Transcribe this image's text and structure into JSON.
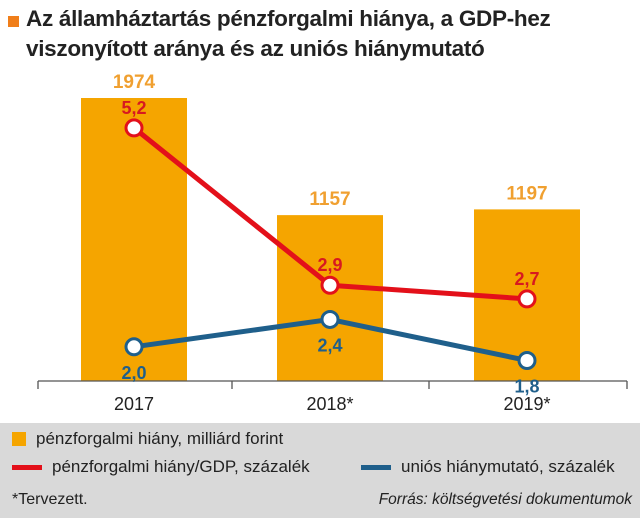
{
  "title": "Az államháztartás pénzforgalmi hiánya, a GDP-hez viszonyított aránya és az uniós hiánymutató",
  "chart_data": {
    "type": "bar",
    "categories": [
      "2017",
      "2018*",
      "2019*"
    ],
    "series": [
      {
        "name": "pénzforgalmi hiány, milliárd forint",
        "kind": "bar",
        "color": "#f5a500",
        "label_color": "#f0a030",
        "values": [
          1974,
          1157,
          1197
        ],
        "labels": [
          "1974",
          "1157",
          "1197"
        ]
      },
      {
        "name": "pénzforgalmi hiány/GDP, százalék",
        "kind": "line",
        "color": "#e3101a",
        "label_color": "#d71920",
        "values": [
          5.2,
          2.9,
          2.7
        ],
        "labels": [
          "5,2",
          "2,9",
          "2,7"
        ]
      },
      {
        "name": "uniós hiánymutató, százalék",
        "kind": "line",
        "color": "#1f5f8b",
        "label_color": "#1f5f8b",
        "values": [
          2.0,
          2.4,
          1.8
        ],
        "labels": [
          "2,0",
          "2,4",
          "1,8"
        ]
      }
    ],
    "legend_position": "bottom"
  },
  "footnote": "*Tervezett.",
  "source": "Forrás: költségvetési dokumentumok"
}
